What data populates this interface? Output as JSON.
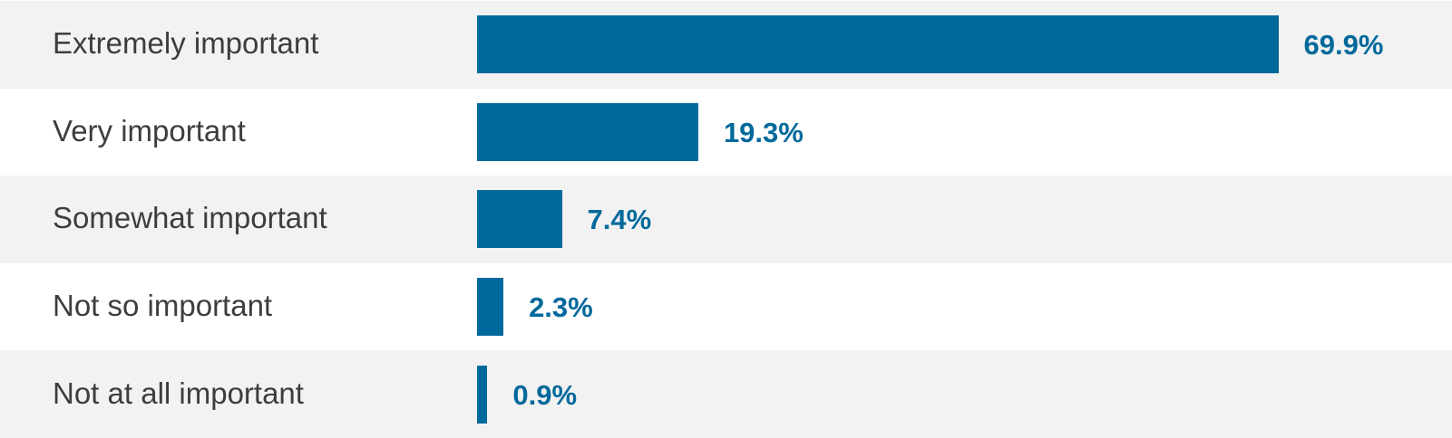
{
  "colors": {
    "bar": "#00699b",
    "value_text": "#00699b",
    "label_text": "#3d3d3d",
    "row_shaded": "#f2f2f2",
    "row_plain": "#ffffff"
  },
  "chart_data": {
    "type": "bar",
    "orientation": "horizontal",
    "categories": [
      "Extremely important",
      "Very important",
      "Somewhat important",
      "Not so important",
      "Not at all important"
    ],
    "values": [
      69.9,
      19.3,
      7.4,
      2.3,
      0.9
    ],
    "value_labels": [
      "69.9%",
      "19.3%",
      "7.4%",
      "2.3%",
      "0.9%"
    ],
    "unit": "%",
    "xlim": [
      0,
      100
    ],
    "grid": false,
    "legend": "none"
  }
}
